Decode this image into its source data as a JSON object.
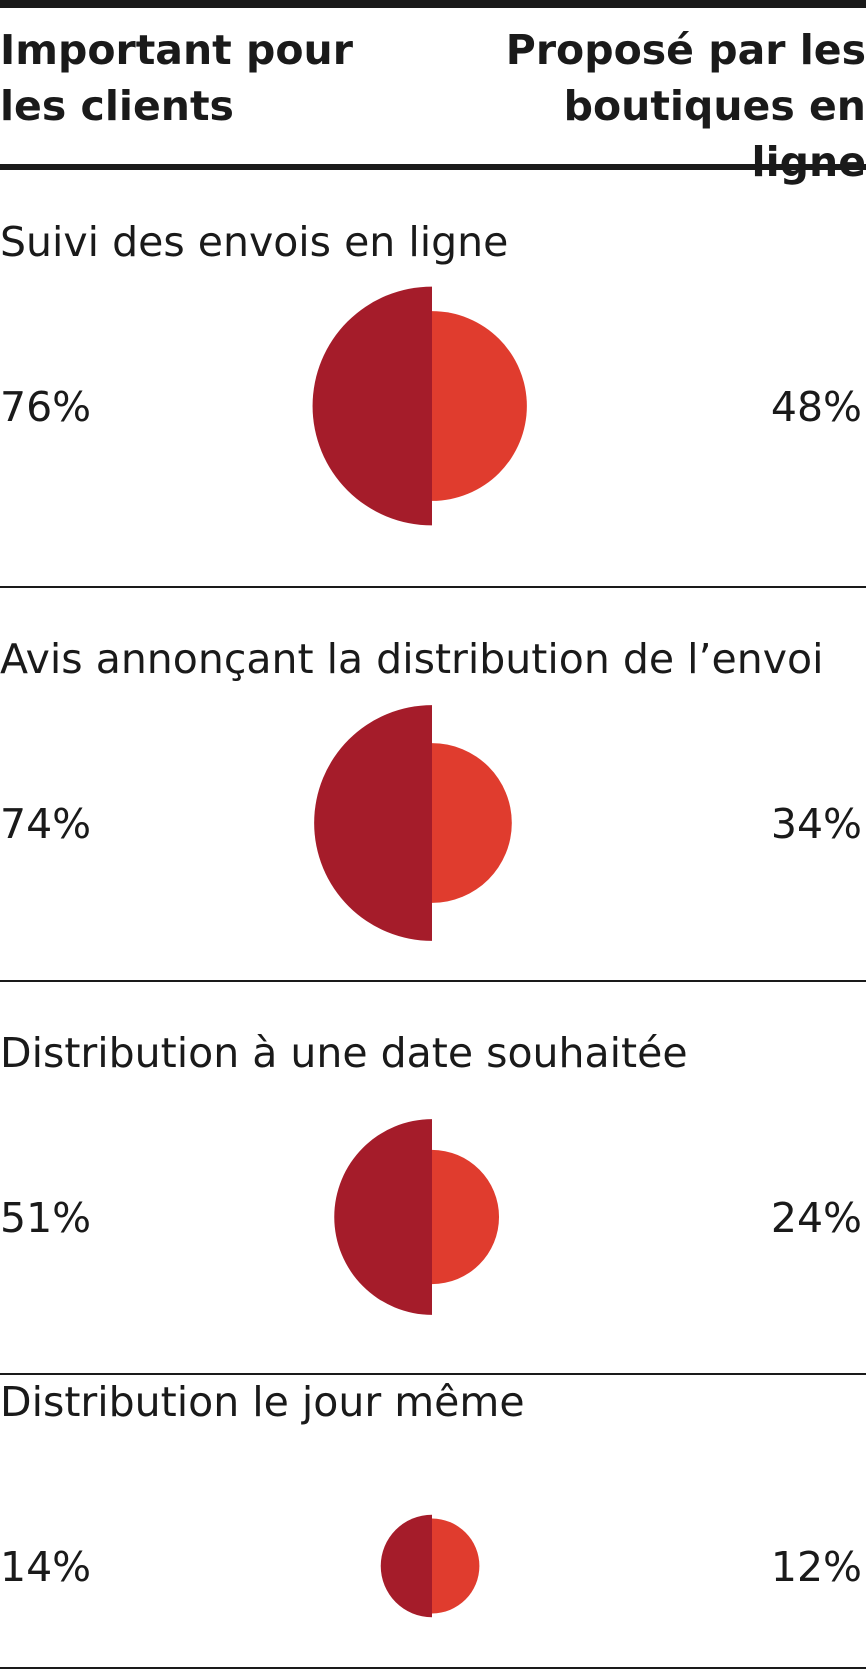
{
  "chart_data": {
    "type": "paired-semicircle",
    "categories": [
      "Suivi des envois en ligne",
      "Avis annonçant la distribution de l’envoi",
      "Distribution à une date souhaitée",
      "Distribution le jour même"
    ],
    "series": [
      {
        "name": "Important pour les clients",
        "color": "#a51c2a",
        "values": [
          76,
          74,
          51,
          14
        ],
        "value_labels": [
          "76%",
          "74%",
          "51%",
          "14%"
        ]
      },
      {
        "name": "Proposé par les boutiques en ligne",
        "color": "#e03c2e",
        "values": [
          48,
          34,
          24,
          12
        ],
        "value_labels": [
          "48%",
          "34%",
          "24%",
          "12%"
        ]
      }
    ]
  }
}
